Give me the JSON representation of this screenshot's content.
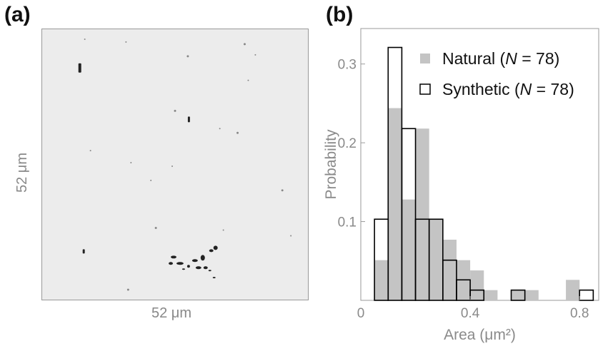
{
  "panels": {
    "a": {
      "label": "(a)",
      "scale_x": "52 μm",
      "scale_y": "52 μm",
      "image": "grayscale micrograph with sparse dark particles"
    },
    "b": {
      "label": "(b)"
    }
  },
  "chart_data": {
    "type": "bar",
    "xlabel": "Area (μm²)",
    "ylabel": "Probability",
    "xlim": [
      0,
      0.87
    ],
    "ylim": [
      0,
      0.345
    ],
    "xticks": [
      0,
      0.4,
      0.8
    ],
    "xtick_labels": [
      "0",
      "0.4",
      "0.8"
    ],
    "yticks": [
      0.1,
      0.2,
      0.3
    ],
    "ytick_labels": [
      "0.1",
      "0.2",
      "0.3"
    ],
    "bin_width": 0.05,
    "grid": false,
    "legend_position": "top-right",
    "series": [
      {
        "name": "Natural (N = 78)",
        "style": "filled",
        "color": "#c4c4c4",
        "bins": [
          {
            "x0": 0.05,
            "x1": 0.1,
            "value": 0.051
          },
          {
            "x0": 0.1,
            "x1": 0.15,
            "value": 0.244
          },
          {
            "x0": 0.15,
            "x1": 0.2,
            "value": 0.128
          },
          {
            "x0": 0.2,
            "x1": 0.25,
            "value": 0.218
          },
          {
            "x0": 0.25,
            "x1": 0.3,
            "value": 0.103
          },
          {
            "x0": 0.3,
            "x1": 0.35,
            "value": 0.077
          },
          {
            "x0": 0.35,
            "x1": 0.4,
            "value": 0.051
          },
          {
            "x0": 0.4,
            "x1": 0.45,
            "value": 0.038
          },
          {
            "x0": 0.45,
            "x1": 0.5,
            "value": 0.013
          },
          {
            "x0": 0.55,
            "x1": 0.6,
            "value": 0.013
          },
          {
            "x0": 0.6,
            "x1": 0.65,
            "value": 0.013
          },
          {
            "x0": 0.75,
            "x1": 0.8,
            "value": 0.026
          }
        ]
      },
      {
        "name": "Synthetic (N = 78)",
        "style": "outline",
        "color": "#000000",
        "bins": [
          {
            "x0": 0.05,
            "x1": 0.1,
            "value": 0.103
          },
          {
            "x0": 0.1,
            "x1": 0.15,
            "value": 0.321
          },
          {
            "x0": 0.15,
            "x1": 0.2,
            "value": 0.218
          },
          {
            "x0": 0.2,
            "x1": 0.25,
            "value": 0.103
          },
          {
            "x0": 0.25,
            "x1": 0.3,
            "value": 0.103
          },
          {
            "x0": 0.3,
            "x1": 0.35,
            "value": 0.051
          },
          {
            "x0": 0.35,
            "x1": 0.4,
            "value": 0.026
          },
          {
            "x0": 0.4,
            "x1": 0.45,
            "value": 0.013
          },
          {
            "x0": 0.55,
            "x1": 0.6,
            "value": 0.013
          },
          {
            "x0": 0.8,
            "x1": 0.85,
            "value": 0.013
          }
        ]
      }
    ],
    "legend": [
      {
        "prefix": "Natural (",
        "italic": "N",
        "suffix": " = 78)",
        "style": "filled"
      },
      {
        "prefix": "Synthetic (",
        "italic": "N",
        "suffix": " = 78)",
        "style": "outline"
      }
    ]
  }
}
